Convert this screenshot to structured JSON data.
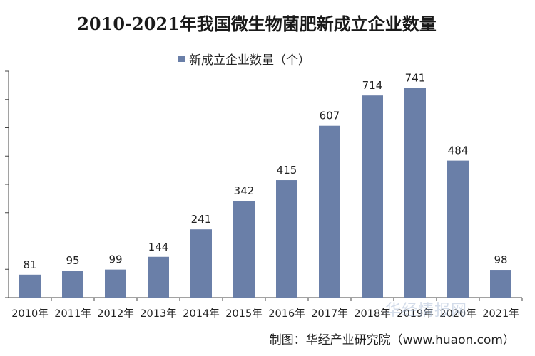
{
  "chart_data": {
    "type": "bar",
    "title": "2010-2021年我国微生物菌肥新成立企业数量",
    "categories": [
      "2010年",
      "2011年",
      "2012年",
      "2013年",
      "2014年",
      "2015年",
      "2016年",
      "2017年",
      "2018年",
      "2019年",
      "2020年",
      "2021年"
    ],
    "series": [
      {
        "name": "新成立企业数量（个）",
        "values": [
          81,
          95,
          99,
          144,
          241,
          342,
          415,
          607,
          714,
          741,
          484,
          98
        ]
      }
    ],
    "ylim": [
      0,
      800
    ],
    "grid": false,
    "legend_position": "top-center",
    "bar_color": "#6a7fa8"
  },
  "credit": "制图：华经产业研究院（www.huaon.com）",
  "watermark": "华经情报网"
}
